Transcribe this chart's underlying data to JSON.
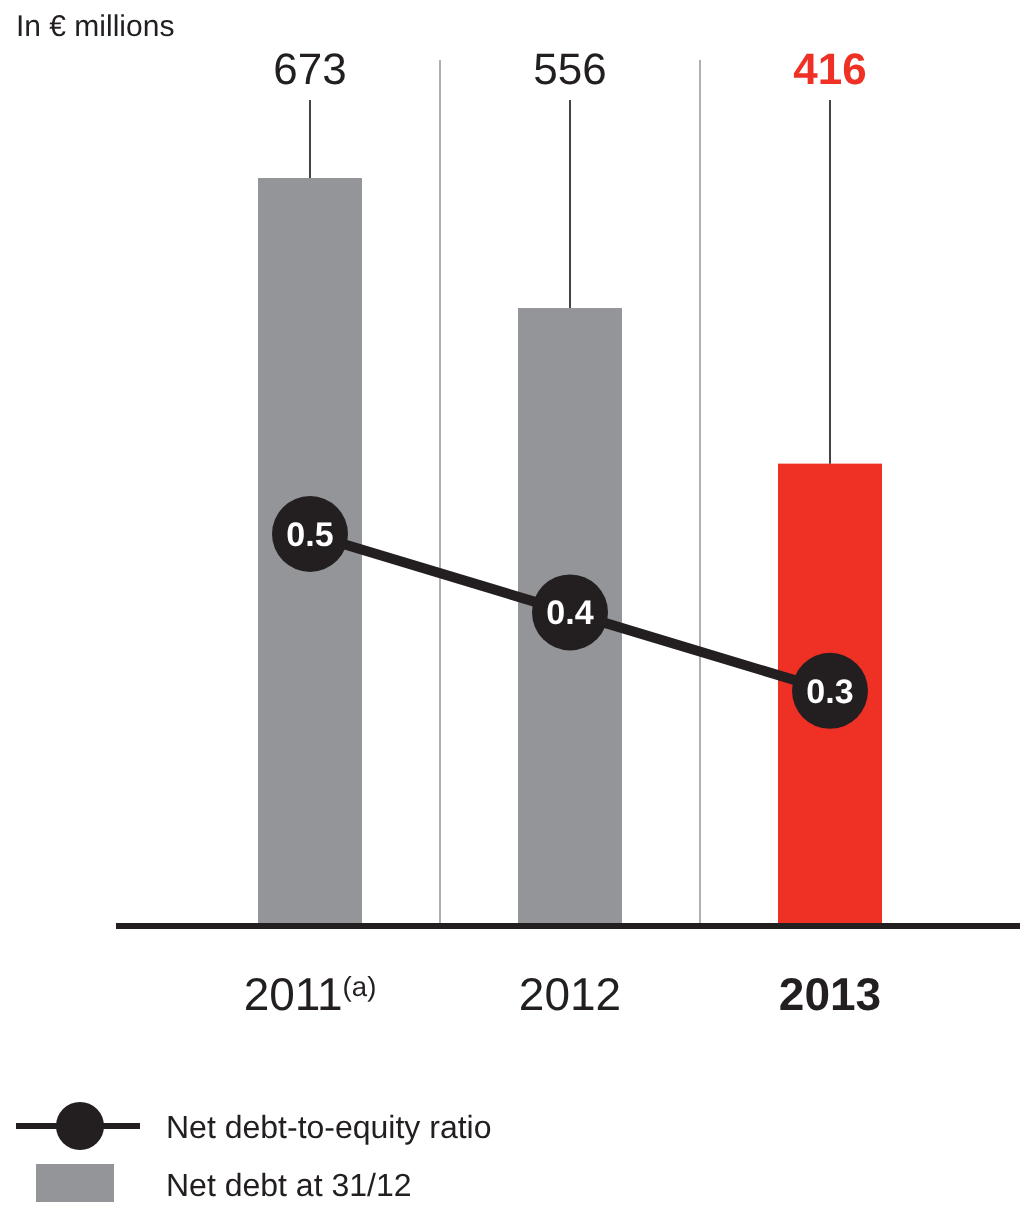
{
  "chart_data": {
    "type": "bar",
    "title": "In € millions",
    "categories": [
      "2011$^{(a)}$",
      "2012",
      "2013"
    ],
    "series": [
      {
        "type": "line",
        "name": "Net debt-to-equity ratio",
        "color": "#231f20",
        "axis": "y2",
        "marker": "circle",
        "values": [
          0.5,
          0.4,
          0.3
        ]
      },
      {
        "name": "Net debt at 31/12",
        "color": "#939598",
        "colors": [
          "#939598",
          "#939598",
          "#ee3124"
        ],
        "values": [
          673,
          556,
          416
        ]
      }
    ],
    "data_labels": true,
    "grid": "x",
    "legend": "bottom left",
    "tick_labels": "x"
  }
}
